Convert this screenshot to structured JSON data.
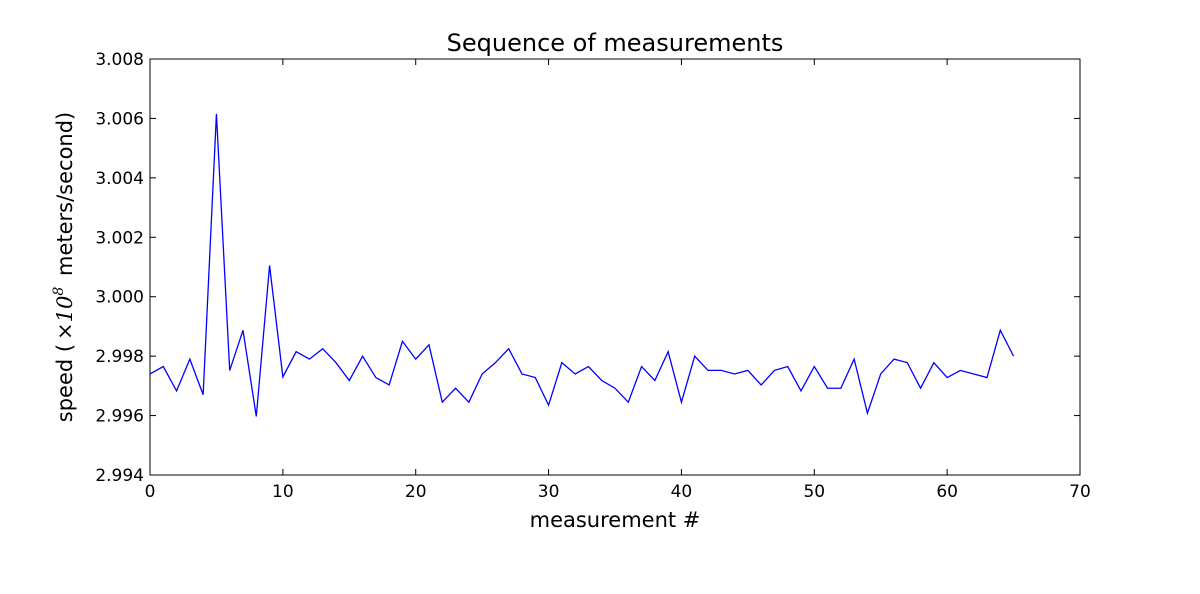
{
  "chart_data": {
    "type": "line",
    "title": "Sequence of measurements",
    "xlabel": "measurement #",
    "ylabel": {
      "prefix": "speed (",
      "factor_base": "×10",
      "factor_exp": "8",
      "suffix": " meters/second)"
    },
    "xlim": [
      0,
      70
    ],
    "ylim": [
      2.994,
      3.008
    ],
    "xticks": [
      0,
      10,
      20,
      30,
      40,
      50,
      60,
      70
    ],
    "xtick_labels": [
      "0",
      "10",
      "20",
      "30",
      "40",
      "50",
      "60",
      "70"
    ],
    "yticks": [
      2.994,
      2.996,
      2.998,
      3.0,
      3.002,
      3.004,
      3.006,
      3.008
    ],
    "ytick_labels": [
      "2.994",
      "2.996",
      "2.998",
      "3.000",
      "3.002",
      "3.004",
      "3.006",
      "3.008"
    ],
    "grid": false,
    "line_color": "#0000ff",
    "series": [
      {
        "x": [
          0,
          1,
          2,
          3,
          4,
          5,
          6,
          7,
          8,
          9,
          10,
          11,
          12,
          13,
          14,
          15,
          16,
          17,
          18,
          19,
          20,
          21,
          22,
          23,
          24,
          25,
          26,
          27,
          28,
          29,
          30,
          31,
          32,
          33,
          34,
          35,
          36,
          37,
          38,
          39,
          40,
          41,
          42,
          43,
          44,
          45,
          46,
          47,
          48,
          49,
          50,
          51,
          52,
          53,
          54,
          55,
          56,
          57,
          58,
          59,
          60,
          61,
          62,
          63,
          64,
          65
        ],
        "values": [
          2.9974,
          2.99765,
          2.99683,
          2.9979,
          2.9967,
          3.00615,
          2.99752,
          2.99887,
          2.99597,
          3.00105,
          2.9973,
          2.99815,
          2.9979,
          2.99825,
          2.99778,
          2.99718,
          2.998,
          2.99728,
          2.99703,
          2.9985,
          2.9979,
          2.99838,
          2.99645,
          2.99692,
          2.99645,
          2.9974,
          2.99778,
          2.99825,
          2.9974,
          2.99728,
          2.99635,
          2.99778,
          2.9974,
          2.99765,
          2.99718,
          2.99692,
          2.99645,
          2.99765,
          2.99718,
          2.99815,
          2.99645,
          2.998,
          2.99752,
          2.99752,
          2.9974,
          2.99752,
          2.99703,
          2.99752,
          2.99765,
          2.99683,
          2.99765,
          2.99692,
          2.99692,
          2.9979,
          2.99608,
          2.9974,
          2.9979,
          2.99778,
          2.99692,
          2.99778,
          2.99728,
          2.99752,
          2.9974,
          2.99728,
          2.99887,
          2.998
        ]
      }
    ]
  }
}
